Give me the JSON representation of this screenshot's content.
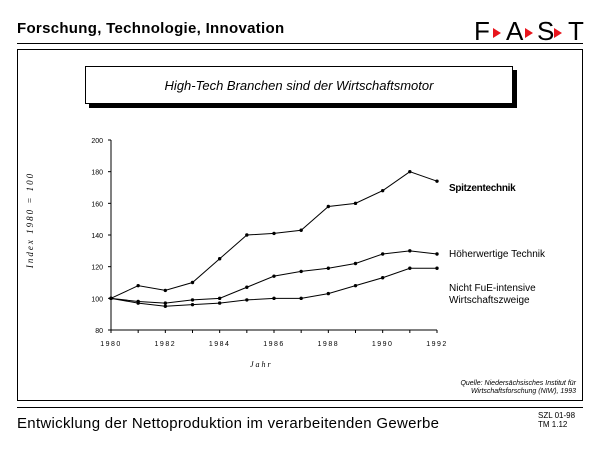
{
  "header": {
    "title": "Forschung, Technologie, Innovation",
    "logo_letters": [
      "F",
      "A",
      "S",
      "T"
    ],
    "logo_accent": "#e8141c"
  },
  "chart_data": {
    "type": "line",
    "title": "High-Tech Branchen sind der Wirtschaftsmotor",
    "xlabel": "Jahr",
    "ylabel": "Index 1980 = 100",
    "x": [
      1980,
      1981,
      1982,
      1983,
      1984,
      1985,
      1986,
      1987,
      1988,
      1989,
      1990,
      1991,
      1992
    ],
    "xticks": [
      "1980",
      "1982",
      "1984",
      "1986",
      "1988",
      "1990",
      "1992"
    ],
    "yticks": [
      "80",
      "100",
      "120",
      "140",
      "160",
      "180",
      "200"
    ],
    "xlim": [
      1980,
      1992
    ],
    "ylim": [
      80,
      200
    ],
    "grid": false,
    "series": [
      {
        "name": "Spitzentechnik",
        "values": [
          100,
          108,
          105,
          110,
          125,
          140,
          141,
          143,
          158,
          160,
          168,
          180,
          174
        ]
      },
      {
        "name": "Höherwertige Technik",
        "values": [
          100,
          98,
          97,
          99,
          100,
          107,
          114,
          117,
          119,
          122,
          128,
          130,
          128
        ]
      },
      {
        "name": "Nicht FuE-intensive\nWirtschaftszweige",
        "values": [
          100,
          97,
          95,
          96,
          97,
          99,
          100,
          100,
          103,
          108,
          113,
          119,
          119
        ]
      }
    ],
    "source": "Quelle: Niedersächsisches Institut für\nWirtschaftsforschung (NIW), 1993"
  },
  "footer": {
    "title": "Entwicklung der Nettoproduktion im verarbeitenden Gewerbe",
    "code_line1": "SZL 01-98",
    "code_line2": "TM 1.12"
  }
}
